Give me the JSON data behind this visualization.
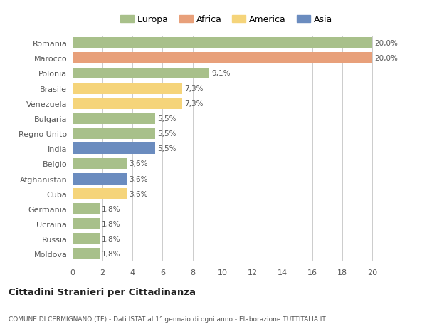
{
  "countries": [
    "Romania",
    "Marocco",
    "Polonia",
    "Brasile",
    "Venezuela",
    "Bulgaria",
    "Regno Unito",
    "India",
    "Belgio",
    "Afghanistan",
    "Cuba",
    "Germania",
    "Ucraina",
    "Russia",
    "Moldova"
  ],
  "values": [
    20.0,
    20.0,
    9.1,
    7.3,
    7.3,
    5.5,
    5.5,
    5.5,
    3.6,
    3.6,
    3.6,
    1.8,
    1.8,
    1.8,
    1.8
  ],
  "labels": [
    "20,0%",
    "20,0%",
    "9,1%",
    "7,3%",
    "7,3%",
    "5,5%",
    "5,5%",
    "5,5%",
    "3,6%",
    "3,6%",
    "3,6%",
    "1,8%",
    "1,8%",
    "1,8%",
    "1,8%"
  ],
  "continents": [
    "Europa",
    "Africa",
    "Europa",
    "America",
    "America",
    "Europa",
    "Europa",
    "Asia",
    "Europa",
    "Asia",
    "America",
    "Europa",
    "Europa",
    "Europa",
    "Europa"
  ],
  "colors": {
    "Europa": "#a8c08a",
    "Africa": "#e8a07a",
    "America": "#f5d47a",
    "Asia": "#6b8cbf"
  },
  "xlim": [
    0,
    20.5
  ],
  "xticks": [
    0,
    2,
    4,
    6,
    8,
    10,
    12,
    14,
    16,
    18,
    20
  ],
  "title": "Cittadini Stranieri per Cittadinanza",
  "subtitle": "COMUNE DI CERMIGNANO (TE) - Dati ISTAT al 1° gennaio di ogni anno - Elaborazione TUTTITALIA.IT",
  "background_color": "#ffffff",
  "grid_color": "#cccccc",
  "bar_height": 0.75
}
